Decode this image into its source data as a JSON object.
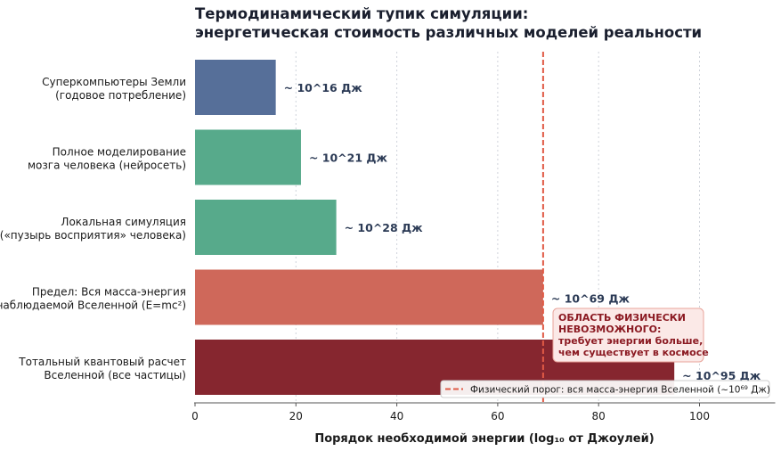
{
  "chart_data": {
    "type": "bar",
    "orientation": "horizontal",
    "title_lines": [
      "Термодинамический тупик симуляции:",
      "энергетическая стоимость различных моделей реальности"
    ],
    "xlabel": "Порядок необходимой энергии (log₁₀ от Джоулей)",
    "xlim": [
      0,
      115
    ],
    "xticks": [
      0,
      20,
      40,
      60,
      80,
      100
    ],
    "grid_x": true,
    "categories": [
      [
        "Суперкомпьютеры Земли",
        "(годовое потребление)"
      ],
      [
        "Полное моделирование",
        "мозга человека (нейросеть)"
      ],
      [
        "Локальная симуляция",
        "(«пузырь восприятия» человека)"
      ],
      [
        "Предел: Вся масса-энергия",
        "наблюдаемой Вселенной (E=mc²)"
      ],
      [
        "Тотальный квантовый расчет",
        "Вселенной (все частицы)"
      ]
    ],
    "values": [
      16,
      21,
      28,
      69,
      95
    ],
    "value_labels": [
      "~ 10^16 Дж",
      "~ 10^21 Дж",
      "~ 10^28 Дж",
      "~ 10^69 Дж",
      "~ 10^95 Дж"
    ],
    "colors": [
      "#566f99",
      "#57aa8b",
      "#57aa8b",
      "#cf685a",
      "#86262f"
    ],
    "threshold": {
      "value": 69,
      "color": "#e05a45",
      "legend": "Физический порог: вся масса-энергия Вселенной (~10⁶⁹ Дж)"
    },
    "legend_position": "bottom-right",
    "annotation": {
      "lines": [
        "ОБЛАСТЬ ФИЗИЧЕСКИ",
        "НЕВОЗМОЖНОГО:",
        "требует энергии больше,",
        "чем существует в космосе"
      ],
      "color": "#8b1a22",
      "background": "#fbe9e7"
    }
  }
}
